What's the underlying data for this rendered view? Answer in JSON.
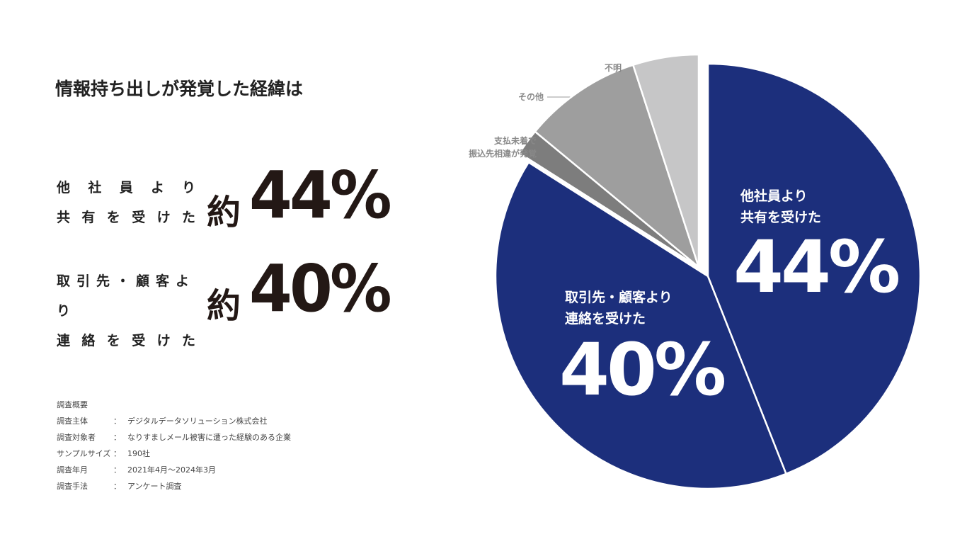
{
  "title": "情報持ち出しが発覚した経緯は",
  "highlight_prefix": "約",
  "chart_data": {
    "type": "pie",
    "categories": [
      "他社員より\n共有を受けた",
      "取引先・顧客より\n連絡を受けた",
      "支払未着で\n振込先相違が発覚",
      "その他",
      "不明"
    ],
    "values": [
      44,
      40,
      2,
      9,
      5
    ],
    "value_labels": [
      "44%",
      "40%",
      null,
      null,
      null
    ],
    "colors": [
      "#1c2f7c",
      "#1c2f7c",
      "#7d7d7d",
      "#9e9e9e",
      "#c6c6c7"
    ],
    "explode": [
      false,
      false,
      true,
      true,
      true
    ]
  },
  "survey": {
    "title": "調査概要",
    "separator": "：",
    "rows": [
      [
        "調査主体",
        "デジタルデータソリューション株式会社"
      ],
      [
        "調査対象者",
        "なりすましメール被害に遭った経験のある企業"
      ],
      [
        "サンプルサイズ",
        "190社"
      ],
      [
        "調査年月",
        "2021年4月～2024年3月"
      ],
      [
        "調査手法",
        "アンケート調査"
      ]
    ]
  }
}
